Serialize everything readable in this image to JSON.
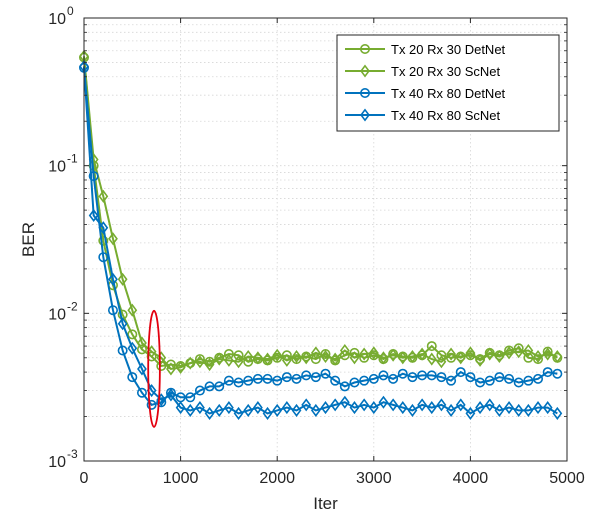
{
  "chart_data": {
    "type": "line",
    "xlabel": "Iter",
    "ylabel": "BER",
    "xlim": [
      0,
      5000
    ],
    "ylim": [
      0.001,
      1
    ],
    "yscale": "log",
    "grid": true,
    "legend_position": "top-right",
    "x_ticks": [
      "0",
      "1000",
      "2000",
      "3000",
      "4000",
      "5000"
    ],
    "y_ticks": [
      {
        "base": "10",
        "exp": "-3"
      },
      {
        "base": "10",
        "exp": "-2"
      },
      {
        "base": "10",
        "exp": "-1"
      },
      {
        "base": "10",
        "exp": "0"
      }
    ],
    "x": [
      0,
      100,
      200,
      300,
      400,
      500,
      600,
      700,
      800,
      900,
      1000,
      1100,
      1200,
      1300,
      1400,
      1500,
      1600,
      1700,
      1800,
      1900,
      2000,
      2100,
      2200,
      2300,
      2400,
      2500,
      2600,
      2700,
      2800,
      2900,
      3000,
      3100,
      3200,
      3300,
      3400,
      3500,
      3600,
      3700,
      3800,
      3900,
      4000,
      4100,
      4200,
      4300,
      4400,
      4500,
      4600,
      4700,
      4800,
      4900
    ],
    "series": [
      {
        "name": "Tx 20 Rx 30 DetNet",
        "color": "#77ac30",
        "marker": "circle",
        "values": [
          0.54,
          0.1,
          0.031,
          0.0155,
          0.0098,
          0.0072,
          0.0057,
          0.0051,
          0.0044,
          0.0045,
          0.0044,
          0.0046,
          0.0049,
          0.0047,
          0.005,
          0.0053,
          0.0052,
          0.0047,
          0.0049,
          0.0048,
          0.005,
          0.0052,
          0.0049,
          0.0051,
          0.0049,
          0.0053,
          0.0048,
          0.0052,
          0.0054,
          0.005,
          0.0052,
          0.0049,
          0.0053,
          0.0051,
          0.005,
          0.0052,
          0.006,
          0.0052,
          0.005,
          0.0051,
          0.0052,
          0.0049,
          0.0054,
          0.0052,
          0.0056,
          0.0058,
          0.005,
          0.0049,
          0.0055,
          0.005
        ]
      },
      {
        "name": "Tx 20 Rx 30 ScNet",
        "color": "#77ac30",
        "marker": "diamond",
        "values": [
          0.55,
          0.11,
          0.062,
          0.032,
          0.017,
          0.0105,
          0.0063,
          0.0055,
          0.005,
          0.0042,
          0.0043,
          0.0046,
          0.0047,
          0.0045,
          0.0049,
          0.0048,
          0.0047,
          0.0051,
          0.005,
          0.0049,
          0.0052,
          0.0048,
          0.0051,
          0.005,
          0.0054,
          0.0051,
          0.0049,
          0.0056,
          0.005,
          0.0053,
          0.0054,
          0.005,
          0.0052,
          0.005,
          0.0051,
          0.0053,
          0.0049,
          0.0047,
          0.0053,
          0.005,
          0.0054,
          0.0048,
          0.0053,
          0.0051,
          0.0054,
          0.0055,
          0.0056,
          0.0051,
          0.0053,
          0.0051
        ]
      },
      {
        "name": "Tx 40 Rx 80 DetNet",
        "color": "#0072bd",
        "marker": "circle",
        "values": [
          0.46,
          0.085,
          0.024,
          0.0105,
          0.0056,
          0.0037,
          0.0029,
          0.0024,
          0.0025,
          0.0029,
          0.0027,
          0.0027,
          0.003,
          0.0032,
          0.0032,
          0.0035,
          0.0034,
          0.0035,
          0.0036,
          0.0036,
          0.0035,
          0.0037,
          0.0036,
          0.0038,
          0.0037,
          0.0039,
          0.0035,
          0.0032,
          0.0034,
          0.0035,
          0.0036,
          0.0038,
          0.0036,
          0.0039,
          0.0037,
          0.0038,
          0.0038,
          0.0037,
          0.0035,
          0.004,
          0.0037,
          0.0034,
          0.0035,
          0.0037,
          0.0036,
          0.0034,
          0.0035,
          0.0036,
          0.004,
          0.0039
        ]
      },
      {
        "name": "Tx 40 Rx 80 ScNet",
        "color": "#0072bd",
        "marker": "diamond",
        "values": [
          0.47,
          0.046,
          0.038,
          0.017,
          0.0085,
          0.0058,
          0.0042,
          0.003,
          0.0026,
          0.0028,
          0.0023,
          0.0022,
          0.0023,
          0.0021,
          0.0022,
          0.0023,
          0.0021,
          0.0022,
          0.0023,
          0.0021,
          0.0022,
          0.0023,
          0.0022,
          0.0024,
          0.0022,
          0.0023,
          0.0024,
          0.0025,
          0.0023,
          0.0024,
          0.0023,
          0.0025,
          0.0024,
          0.0023,
          0.0022,
          0.0024,
          0.0023,
          0.0024,
          0.0022,
          0.0024,
          0.0021,
          0.0023,
          0.0024,
          0.0022,
          0.0023,
          0.0022,
          0.0022,
          0.0023,
          0.0023,
          0.0021
        ]
      }
    ],
    "annotation": {
      "shape": "ellipse",
      "color": "#e3000f",
      "cx": 725,
      "cy": 0.00405,
      "rx": 250,
      "ry_decades_top": 0.0104,
      "ry_decades_bottom": 0.0017
    }
  }
}
